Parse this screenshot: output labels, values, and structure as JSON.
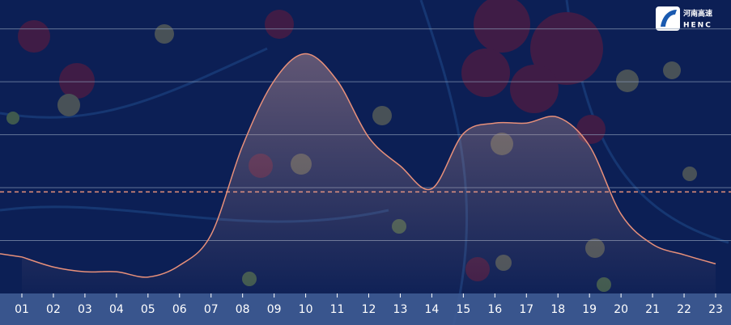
{
  "logo": {
    "name": "河南高速",
    "abbr": "HENC"
  },
  "chart_data": {
    "type": "line",
    "categories": [
      "01",
      "02",
      "03",
      "04",
      "05",
      "06",
      "07",
      "08",
      "09",
      "10",
      "11",
      "12",
      "13",
      "14",
      "15",
      "16",
      "17",
      "18",
      "19",
      "20",
      "21",
      "22",
      "23"
    ],
    "values": [
      0.69,
      0.5,
      0.41,
      0.41,
      0.31,
      0.53,
      1.11,
      2.79,
      4.02,
      4.53,
      4.02,
      2.95,
      2.41,
      1.98,
      3.02,
      3.22,
      3.22,
      3.33,
      2.79,
      1.5,
      0.93,
      0.73,
      0.56
    ],
    "color": "#e8907a",
    "ylim": [
      0,
      5.5
    ],
    "yticks": [
      1,
      2,
      3,
      4,
      5
    ],
    "ytick_labels": false,
    "grid": true,
    "reference_line": 1.92,
    "reference_color": "#e8907a"
  }
}
